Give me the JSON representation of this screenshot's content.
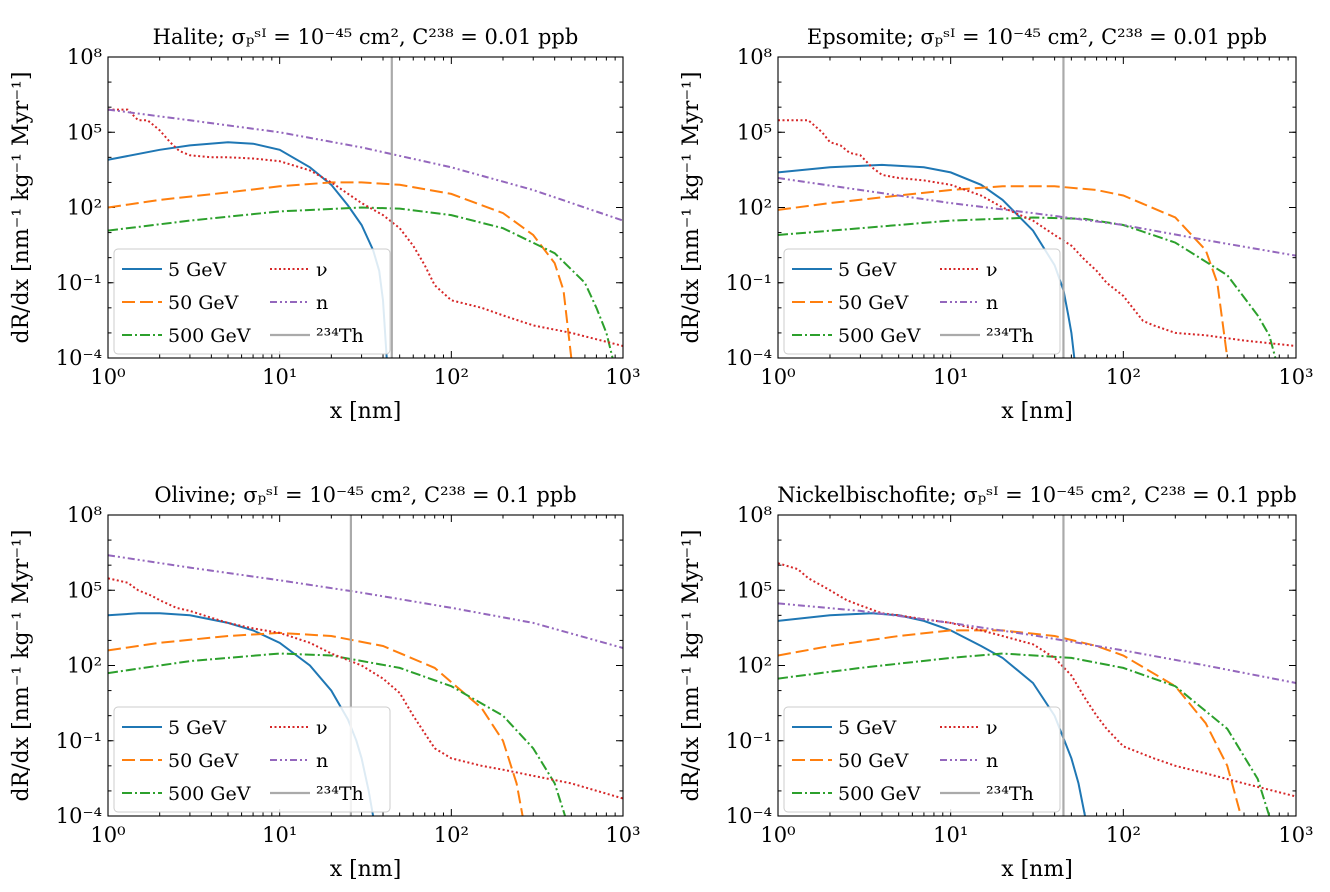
{
  "chart_data": [
    {
      "type": "line",
      "title": "Halite; σ_p^SI = 10^−45 cm², C^238 = 0.01 ppb",
      "xlabel": "x [nm]",
      "ylabel": "dR/dx [nm⁻¹ kg⁻¹ Myr⁻¹]",
      "xscale": "log",
      "yscale": "log",
      "xlim": [
        1,
        1000
      ],
      "ylim": [
        0.0001,
        100000000
      ],
      "xticks": [
        "10^0",
        "10^1",
        "10^2",
        "10^3"
      ],
      "yticks": [
        "10^−4",
        "10^−1",
        "10^2",
        "10^5",
        "10^8"
      ],
      "legend_position": "lower-left",
      "series": [
        {
          "name": "5 GeV",
          "color": "#1f77b4",
          "dash": "solid",
          "x": [
            1,
            2,
            3,
            5,
            7,
            10,
            15,
            20,
            25,
            30,
            35,
            38,
            40,
            42
          ],
          "y": [
            8000,
            20000,
            30000,
            40000,
            35000,
            20000,
            4000,
            800,
            120,
            20,
            2,
            0.3,
            0.02,
            0.0001
          ]
        },
        {
          "name": "50 GeV",
          "color": "#ff7f0e",
          "dash": "longdash",
          "x": [
            1,
            2,
            5,
            10,
            20,
            30,
            50,
            100,
            200,
            300,
            400,
            450,
            500
          ],
          "y": [
            100,
            200,
            400,
            700,
            1000,
            1000,
            800,
            350,
            60,
            8,
            0.6,
            0.05,
            0.0001
          ]
        },
        {
          "name": "500 GeV",
          "color": "#2ca02c",
          "dash": "dashdot",
          "x": [
            1,
            3,
            10,
            30,
            50,
            100,
            200,
            400,
            600,
            700,
            800,
            870
          ],
          "y": [
            12,
            30,
            70,
            100,
            90,
            50,
            15,
            1.5,
            0.1,
            0.01,
            0.001,
            0.0001
          ]
        },
        {
          "name": "ν",
          "color": "#d62728",
          "dash": "dotted",
          "x": [
            1,
            1.3,
            1.5,
            1.7,
            2,
            2.3,
            2.6,
            3,
            4,
            5,
            7,
            10,
            15,
            20,
            30,
            40,
            50,
            60,
            70,
            80,
            100,
            150,
            200,
            300,
            500,
            1000
          ],
          "y": [
            800000,
            800000,
            300000,
            300000,
            120000,
            40000,
            18000,
            12000,
            10000,
            10000,
            9000,
            7000,
            3000,
            1000,
            150,
            50,
            15,
            3,
            0.5,
            0.08,
            0.02,
            0.01,
            0.005,
            0.002,
            0.001,
            0.0003
          ]
        },
        {
          "name": "n",
          "color": "#9467bd",
          "dash": "dashdotdot",
          "x": [
            1,
            3,
            10,
            30,
            100,
            300,
            1000
          ],
          "y": [
            800000,
            300000,
            100000,
            25000,
            4000,
            500,
            30
          ]
        },
        {
          "name": "²³⁴Th",
          "color": "#aaaaaa",
          "dash": "vline",
          "xvline": 45
        }
      ]
    },
    {
      "type": "line",
      "title": "Epsomite; σ_p^SI = 10^−45 cm², C^238 = 0.01 ppb",
      "xlabel": "x [nm]",
      "ylabel": "dR/dx [nm⁻¹ kg⁻¹ Myr⁻¹]",
      "xscale": "log",
      "yscale": "log",
      "xlim": [
        1,
        1000
      ],
      "ylim": [
        0.0001,
        100000000
      ],
      "xticks": [
        "10^0",
        "10^1",
        "10^2",
        "10^3"
      ],
      "yticks": [
        "10^−4",
        "10^−1",
        "10^2",
        "10^5",
        "10^8"
      ],
      "legend_position": "lower-left",
      "series": [
        {
          "name": "5 GeV",
          "color": "#1f77b4",
          "dash": "solid",
          "x": [
            1,
            2,
            4,
            7,
            10,
            15,
            20,
            30,
            40,
            45,
            48,
            50,
            52
          ],
          "y": [
            2500,
            4000,
            5000,
            4000,
            2500,
            800,
            200,
            12,
            0.5,
            0.05,
            0.005,
            0.001,
            0.0001
          ]
        },
        {
          "name": "50 GeV",
          "color": "#ff7f0e",
          "dash": "longdash",
          "x": [
            1,
            2,
            5,
            10,
            20,
            40,
            70,
            100,
            200,
            300,
            350,
            400
          ],
          "y": [
            80,
            150,
            300,
            500,
            700,
            700,
            500,
            300,
            40,
            2,
            0.1,
            0.0001
          ]
        },
        {
          "name": "500 GeV",
          "color": "#2ca02c",
          "dash": "dashdot",
          "x": [
            1,
            3,
            10,
            30,
            60,
            100,
            200,
            400,
            600,
            700,
            760
          ],
          "y": [
            8,
            15,
            30,
            40,
            35,
            20,
            4,
            0.2,
            0.005,
            0.0008,
            0.0001
          ]
        },
        {
          "name": "ν",
          "color": "#d62728",
          "dash": "dotted",
          "x": [
            1,
            1.5,
            1.8,
            2,
            2.3,
            2.6,
            3,
            3.5,
            4,
            5,
            7,
            10,
            15,
            20,
            30,
            40,
            50,
            60,
            70,
            80,
            100,
            130,
            150,
            200,
            300,
            500,
            1000
          ],
          "y": [
            300000,
            300000,
            100000,
            40000,
            30000,
            15000,
            12000,
            4000,
            2000,
            1500,
            1200,
            800,
            300,
            100,
            30,
            8,
            3,
            0.8,
            0.3,
            0.1,
            0.03,
            0.003,
            0.002,
            0.001,
            0.0008,
            0.0005,
            0.0003
          ]
        },
        {
          "name": "n",
          "color": "#9467bd",
          "dash": "dashdotdot",
          "x": [
            1,
            3,
            10,
            30,
            100,
            300,
            1000
          ],
          "y": [
            1500,
            500,
            150,
            60,
            20,
            5,
            1.2
          ]
        },
        {
          "name": "²³⁴Th",
          "color": "#aaaaaa",
          "dash": "vline",
          "xvline": 45
        }
      ]
    },
    {
      "type": "line",
      "title": "Olivine; σ_p^SI = 10^−45 cm², C^238 = 0.1 ppb",
      "xlabel": "x [nm]",
      "ylabel": "dR/dx [nm⁻¹ kg⁻¹ Myr⁻¹]",
      "xscale": "log",
      "yscale": "log",
      "xlim": [
        1,
        1000
      ],
      "ylim": [
        0.0001,
        100000000
      ],
      "xticks": [
        "10^0",
        "10^1",
        "10^2",
        "10^3"
      ],
      "yticks": [
        "10^−4",
        "10^−1",
        "10^2",
        "10^5",
        "10^8"
      ],
      "legend_position": "lower-left",
      "series": [
        {
          "name": "5 GeV",
          "color": "#1f77b4",
          "dash": "solid",
          "x": [
            1,
            1.5,
            2,
            3,
            5,
            7,
            10,
            15,
            20,
            25,
            28,
            30,
            33,
            35
          ],
          "y": [
            10000,
            12000,
            12000,
            10000,
            5000,
            2500,
            800,
            100,
            10,
            0.7,
            0.1,
            0.02,
            0.001,
            0.0001
          ]
        },
        {
          "name": "50 GeV",
          "color": "#ff7f0e",
          "dash": "longdash",
          "x": [
            1,
            2,
            5,
            10,
            20,
            40,
            80,
            150,
            200,
            240,
            260
          ],
          "y": [
            400,
            800,
            1500,
            2000,
            1500,
            600,
            80,
            2,
            0.1,
            0.002,
            0.0001
          ]
        },
        {
          "name": "500 GeV",
          "color": "#2ca02c",
          "dash": "dashdot",
          "x": [
            1,
            3,
            10,
            20,
            50,
            100,
            200,
            300,
            400,
            460
          ],
          "y": [
            50,
            150,
            300,
            250,
            80,
            15,
            1,
            0.05,
            0.002,
            0.0001
          ]
        },
        {
          "name": "ν",
          "color": "#d62728",
          "dash": "dotted",
          "x": [
            1,
            1.3,
            1.5,
            1.8,
            2,
            2.5,
            3,
            4,
            5,
            7,
            10,
            15,
            20,
            30,
            40,
            50,
            60,
            70,
            80,
            100,
            150,
            200,
            300,
            500,
            1000
          ],
          "y": [
            300000,
            200000,
            100000,
            60000,
            40000,
            20000,
            15000,
            8000,
            5000,
            3000,
            2000,
            800,
            300,
            100,
            30,
            8,
            1,
            0.2,
            0.05,
            0.02,
            0.01,
            0.007,
            0.004,
            0.002,
            0.0005
          ]
        },
        {
          "name": "n",
          "color": "#9467bd",
          "dash": "dashdotdot",
          "x": [
            1,
            3,
            10,
            30,
            100,
            300,
            1000
          ],
          "y": [
            2500000,
            800000,
            250000,
            80000,
            20000,
            5000,
            500
          ]
        },
        {
          "name": "²³⁴Th",
          "color": "#aaaaaa",
          "dash": "vline",
          "xvline": 26
        }
      ]
    },
    {
      "type": "line",
      "title": "Nickelbischofite; σ_p^SI = 10^−45 cm², C^238 = 0.1 ppb",
      "xlabel": "x [nm]",
      "ylabel": "dR/dx [nm⁻¹ kg⁻¹ Myr⁻¹]",
      "xscale": "log",
      "yscale": "log",
      "xlim": [
        1,
        1000
      ],
      "ylim": [
        0.0001,
        100000000
      ],
      "xticks": [
        "10^0",
        "10^1",
        "10^2",
        "10^3"
      ],
      "yticks": [
        "10^−4",
        "10^−1",
        "10^2",
        "10^5",
        "10^8"
      ],
      "legend_position": "lower-left",
      "series": [
        {
          "name": "5 GeV",
          "color": "#1f77b4",
          "dash": "solid",
          "x": [
            1,
            2,
            3.5,
            5,
            7,
            10,
            15,
            20,
            30,
            40,
            50,
            55,
            60
          ],
          "y": [
            6000,
            10000,
            12000,
            10000,
            6000,
            2500,
            600,
            200,
            20,
            1,
            0.02,
            0.002,
            0.0001
          ]
        },
        {
          "name": "50 GeV",
          "color": "#ff7f0e",
          "dash": "longdash",
          "x": [
            1,
            2,
            5,
            10,
            20,
            40,
            70,
            100,
            200,
            300,
            400,
            480
          ],
          "y": [
            250,
            600,
            1500,
            2500,
            2500,
            1500,
            600,
            250,
            15,
            0.5,
            0.01,
            0.0001
          ]
        },
        {
          "name": "500 GeV",
          "color": "#2ca02c",
          "dash": "dashdot",
          "x": [
            1,
            3,
            10,
            20,
            50,
            100,
            200,
            400,
            600,
            700
          ],
          "y": [
            30,
            80,
            200,
            300,
            200,
            80,
            15,
            0.3,
            0.003,
            0.0001
          ]
        },
        {
          "name": "ν",
          "color": "#d62728",
          "dash": "dotted",
          "x": [
            1,
            1.3,
            1.5,
            1.8,
            2,
            2.5,
            3,
            4,
            5,
            7,
            10,
            15,
            20,
            30,
            40,
            50,
            60,
            70,
            80,
            100,
            150,
            200,
            300,
            500,
            1000
          ],
          "y": [
            1200000,
            700000,
            300000,
            150000,
            100000,
            40000,
            25000,
            12000,
            10000,
            7000,
            5000,
            2500,
            1500,
            700,
            200,
            40,
            5,
            1,
            0.3,
            0.06,
            0.02,
            0.01,
            0.005,
            0.002,
            0.0006
          ]
        },
        {
          "name": "n",
          "color": "#9467bd",
          "dash": "dashdotdot",
          "x": [
            1,
            3,
            10,
            30,
            100,
            300,
            1000
          ],
          "y": [
            30000,
            15000,
            5000,
            1600,
            400,
            100,
            20
          ]
        },
        {
          "name": "²³⁴Th",
          "color": "#aaaaaa",
          "dash": "vline",
          "xvline": 45
        }
      ]
    }
  ]
}
